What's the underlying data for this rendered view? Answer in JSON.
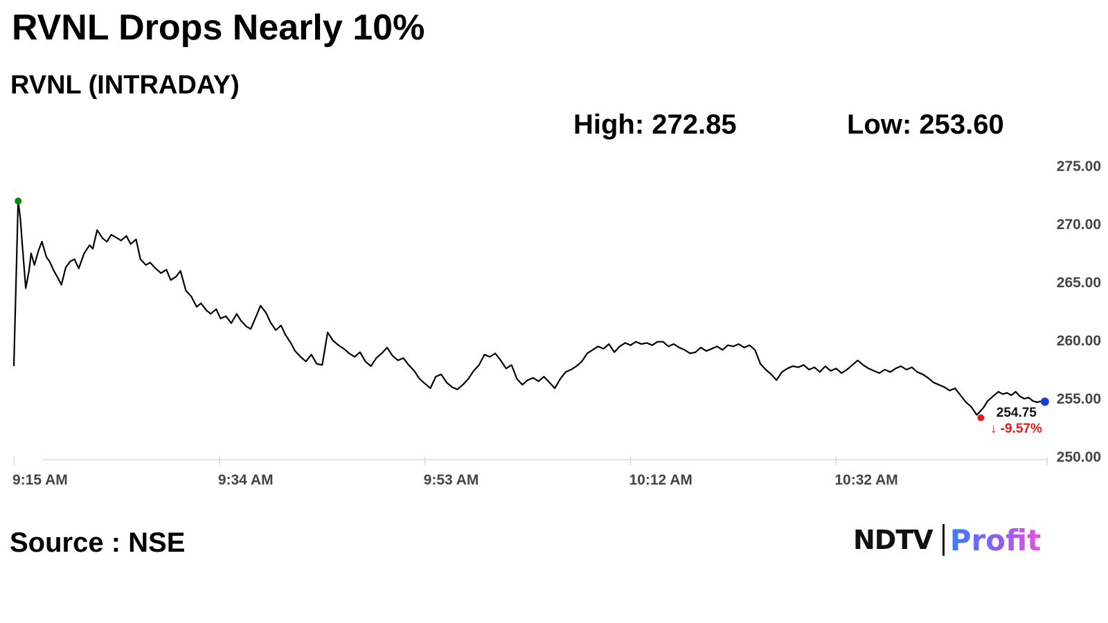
{
  "headline": "RVNL Drops Nearly 10%",
  "subtitle": "RVNL (INTRADAY)",
  "stats": {
    "high": "High: 272.85",
    "low": "Low: 253.60"
  },
  "source": "Source : NSE",
  "brand": {
    "ndtv": "NDTV",
    "profit": "Profit"
  },
  "colors": {
    "line": "#000000",
    "start_dot": "#0a8a0a",
    "low_dot": "#e21b1b",
    "end_dot": "#1a3fd8",
    "change": "#e21b1b"
  },
  "chart_data": {
    "type": "line",
    "title": "",
    "xlabel": "",
    "ylabel": "",
    "ylim": [
      250,
      275
    ],
    "yticks": [
      "275.00",
      "270.00",
      "265.00",
      "260.00",
      "255.00",
      "250.00"
    ],
    "ytick_values": [
      275,
      270,
      265,
      260,
      255,
      250
    ],
    "xticks": [
      "9:15 AM",
      "9:34 AM",
      "9:53 AM",
      "10:12 AM",
      "10:32 AM"
    ],
    "xtick_minutes": [
      0,
      19,
      38,
      57,
      76
    ],
    "x_range_minutes": [
      0,
      95.5
    ],
    "grid": false,
    "last_value_label": "254.75",
    "change_label": "↓ -9.57%",
    "series": [
      {
        "x_minutes": [
          0,
          0.4,
          0.6,
          0.8,
          1.1,
          1.4,
          1.6,
          1.9,
          2.3,
          2.6,
          3.0,
          3.3,
          3.7,
          4.0,
          4.4,
          4.8,
          5.2,
          5.6,
          6.0,
          6.5,
          7.0,
          7.3,
          7.7,
          8.2,
          8.6,
          9.0,
          9.4,
          9.9,
          10.4,
          10.8,
          11.3,
          11.7,
          12.2,
          12.6,
          13.1,
          13.6,
          14.1,
          14.5,
          15.0,
          15.4,
          15.9,
          16.4,
          16.9,
          17.3,
          17.8,
          18.2,
          18.7,
          19.1,
          19.6,
          20.1,
          20.6,
          21.0,
          21.5,
          21.9,
          22.4,
          22.8,
          23.3,
          23.7,
          24.2,
          24.7,
          25.1,
          25.6,
          26.0,
          26.5,
          27.0,
          27.5,
          28.0,
          28.5,
          29.0,
          29.5,
          30.0,
          30.5,
          31.0,
          31.5,
          32.0,
          32.5,
          33.0,
          33.5,
          34.0,
          34.5,
          35.0,
          35.5,
          36.0,
          36.5,
          37.0,
          37.5,
          38.0,
          38.5,
          39.0,
          39.5,
          40.0,
          40.5,
          41.0,
          41.5,
          42.0,
          42.5,
          43.0,
          43.5,
          44.0,
          44.5,
          45.0,
          45.5,
          46.0,
          46.5,
          47.0,
          47.5,
          48.0,
          48.5,
          49.0,
          49.5,
          50.0,
          50.5,
          51.0,
          51.5,
          52.0,
          52.5,
          53.0,
          53.5,
          54.0,
          54.5,
          55.0,
          55.5,
          56.0,
          56.5,
          57.0,
          57.5,
          58.0,
          58.5,
          59.0,
          59.5,
          60.0,
          60.5,
          61.0,
          61.5,
          62.0,
          62.5,
          63.0,
          63.5,
          64.0,
          64.5,
          65.0,
          65.5,
          66.0,
          66.5,
          67.0,
          67.5,
          68.0,
          68.5,
          69.0,
          69.5,
          70.0,
          70.5,
          71.0,
          71.5,
          72.0,
          72.5,
          73.0,
          73.5,
          74.0,
          74.5,
          75.0,
          75.5,
          76.0,
          76.5,
          77.0,
          77.5,
          78.0,
          78.5,
          79.0,
          79.5,
          80.0,
          80.5,
          81.0,
          81.5,
          82.0,
          82.5,
          83.0,
          83.5,
          84.0,
          84.5,
          85.0,
          85.5,
          86.0,
          86.5,
          87.0,
          87.5,
          88.0,
          88.5,
          89.0,
          89.3,
          89.6,
          90.0,
          90.5,
          91.0,
          91.4,
          91.8,
          92.2,
          92.6,
          93.0,
          93.4,
          93.8,
          94.2,
          94.6,
          95.0,
          95.3
        ],
        "values": [
          257.8,
          272.0,
          270.5,
          268.0,
          264.5,
          266.0,
          267.5,
          266.5,
          267.8,
          268.5,
          267.2,
          266.8,
          266.0,
          265.5,
          264.8,
          266.3,
          266.8,
          267.0,
          266.2,
          267.5,
          268.2,
          267.9,
          269.5,
          268.8,
          268.5,
          269.1,
          268.9,
          268.6,
          269.0,
          268.3,
          268.7,
          267.0,
          266.5,
          266.7,
          266.2,
          265.8,
          266.1,
          265.2,
          265.5,
          266.0,
          264.3,
          263.8,
          262.9,
          263.2,
          262.6,
          262.3,
          262.7,
          261.9,
          262.1,
          261.5,
          262.3,
          261.7,
          261.2,
          261.0,
          262.1,
          263.0,
          262.4,
          261.6,
          260.9,
          261.3,
          260.5,
          259.8,
          259.1,
          258.6,
          258.2,
          258.8,
          258.0,
          257.9,
          260.7,
          260.0,
          259.6,
          259.3,
          258.9,
          258.6,
          259.0,
          258.2,
          257.8,
          258.5,
          258.9,
          259.4,
          258.7,
          258.3,
          258.5,
          257.9,
          257.4,
          256.7,
          256.3,
          255.9,
          256.9,
          257.1,
          256.4,
          256.0,
          255.8,
          256.2,
          256.7,
          257.4,
          257.9,
          258.8,
          258.6,
          258.9,
          258.3,
          257.6,
          257.9,
          256.7,
          256.2,
          256.6,
          256.8,
          256.5,
          256.9,
          256.4,
          255.9,
          256.7,
          257.3,
          257.5,
          257.8,
          258.2,
          258.9,
          259.2,
          259.5,
          259.3,
          259.7,
          259.0,
          259.5,
          259.8,
          259.6,
          259.9,
          259.7,
          259.8,
          259.6,
          259.9,
          259.9,
          259.5,
          259.7,
          259.4,
          259.2,
          258.9,
          259.0,
          259.4,
          259.1,
          259.3,
          259.5,
          259.2,
          259.6,
          259.5,
          259.7,
          259.4,
          259.6,
          259.2,
          258.0,
          257.5,
          257.1,
          256.6,
          257.3,
          257.6,
          257.8,
          257.7,
          257.9,
          257.5,
          257.7,
          257.3,
          257.8,
          257.4,
          257.6,
          257.2,
          257.5,
          257.9,
          258.3,
          257.9,
          257.6,
          257.4,
          257.2,
          257.5,
          257.3,
          257.6,
          257.8,
          257.5,
          257.7,
          257.3,
          257.1,
          256.8,
          256.4,
          256.2,
          256.0,
          255.7,
          255.9,
          255.3,
          254.7,
          254.3,
          253.6,
          253.9,
          254.2,
          254.8,
          255.2,
          255.6,
          255.4,
          255.5,
          255.3,
          255.6,
          255.2,
          255.0,
          255.1,
          254.8,
          254.7,
          254.8,
          254.75
        ]
      }
    ]
  }
}
